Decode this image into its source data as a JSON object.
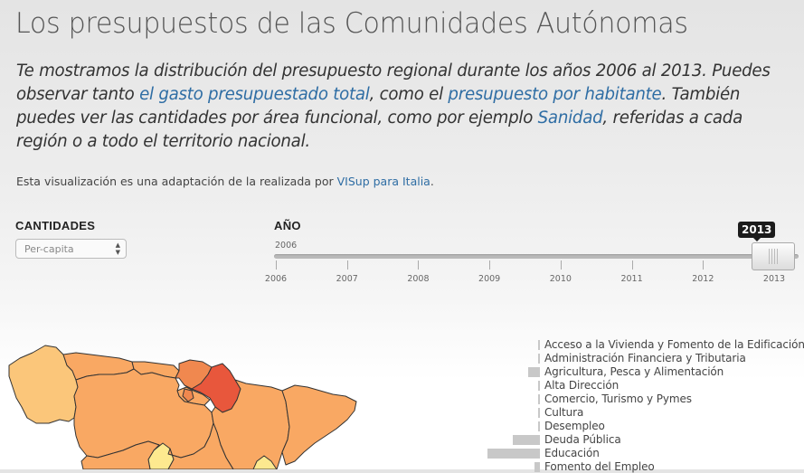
{
  "header": {
    "title": "Los presupuestos de las Comunidades Autónomas"
  },
  "intro": {
    "text1": "Te mostramos la distribución del presupuesto regional durante los años 2006 al 2013. Puedes observar tanto ",
    "link1": "el gasto presupuestado total",
    "text2": ", como el ",
    "link2": "presupuesto por habitante",
    "text3": ". También puedes ver las cantidades por área funcional, como por ejemplo ",
    "link3": "Sanidad",
    "text4": ", referidas a cada región o a todo el territorio nacional."
  },
  "credit": {
    "text": "Esta visualización es una adaptación de la realizada por ",
    "link": "VISup para Italia",
    "end": "."
  },
  "controls": {
    "cantidades_label": "CANTIDADES",
    "select_value": "Per-capita",
    "year_label": "AÑO",
    "slider_min_label": "2006",
    "selected_year": "2013",
    "years": [
      "2006",
      "2007",
      "2008",
      "2009",
      "2010",
      "2011",
      "2012",
      "2013"
    ]
  },
  "map_colors": {
    "light": "#fbc67a",
    "mid": "#f9a863",
    "strong": "#f0884f",
    "highlight": "#e8573c",
    "pale": "#fde98f",
    "border": "#333333"
  },
  "areas": [
    {
      "label": "Acceso a la Vivienda y Fomento de la Edificación",
      "value": 0.5
    },
    {
      "label": "Administración Financiera y Tributaria",
      "value": 0.5
    },
    {
      "label": "Agricultura, Pesca y Alimentación",
      "value": 3
    },
    {
      "label": "Alta Dirección",
      "value": 0.5
    },
    {
      "label": "Comercio, Turismo y Pymes",
      "value": 0.5
    },
    {
      "label": "Cultura",
      "value": 0.5
    },
    {
      "label": "Desempleo",
      "value": 0.5
    },
    {
      "label": "Deuda Pública",
      "value": 7
    },
    {
      "label": "Educación",
      "value": 13.5
    },
    {
      "label": "Fomento del Empleo",
      "value": 1.5
    }
  ]
}
